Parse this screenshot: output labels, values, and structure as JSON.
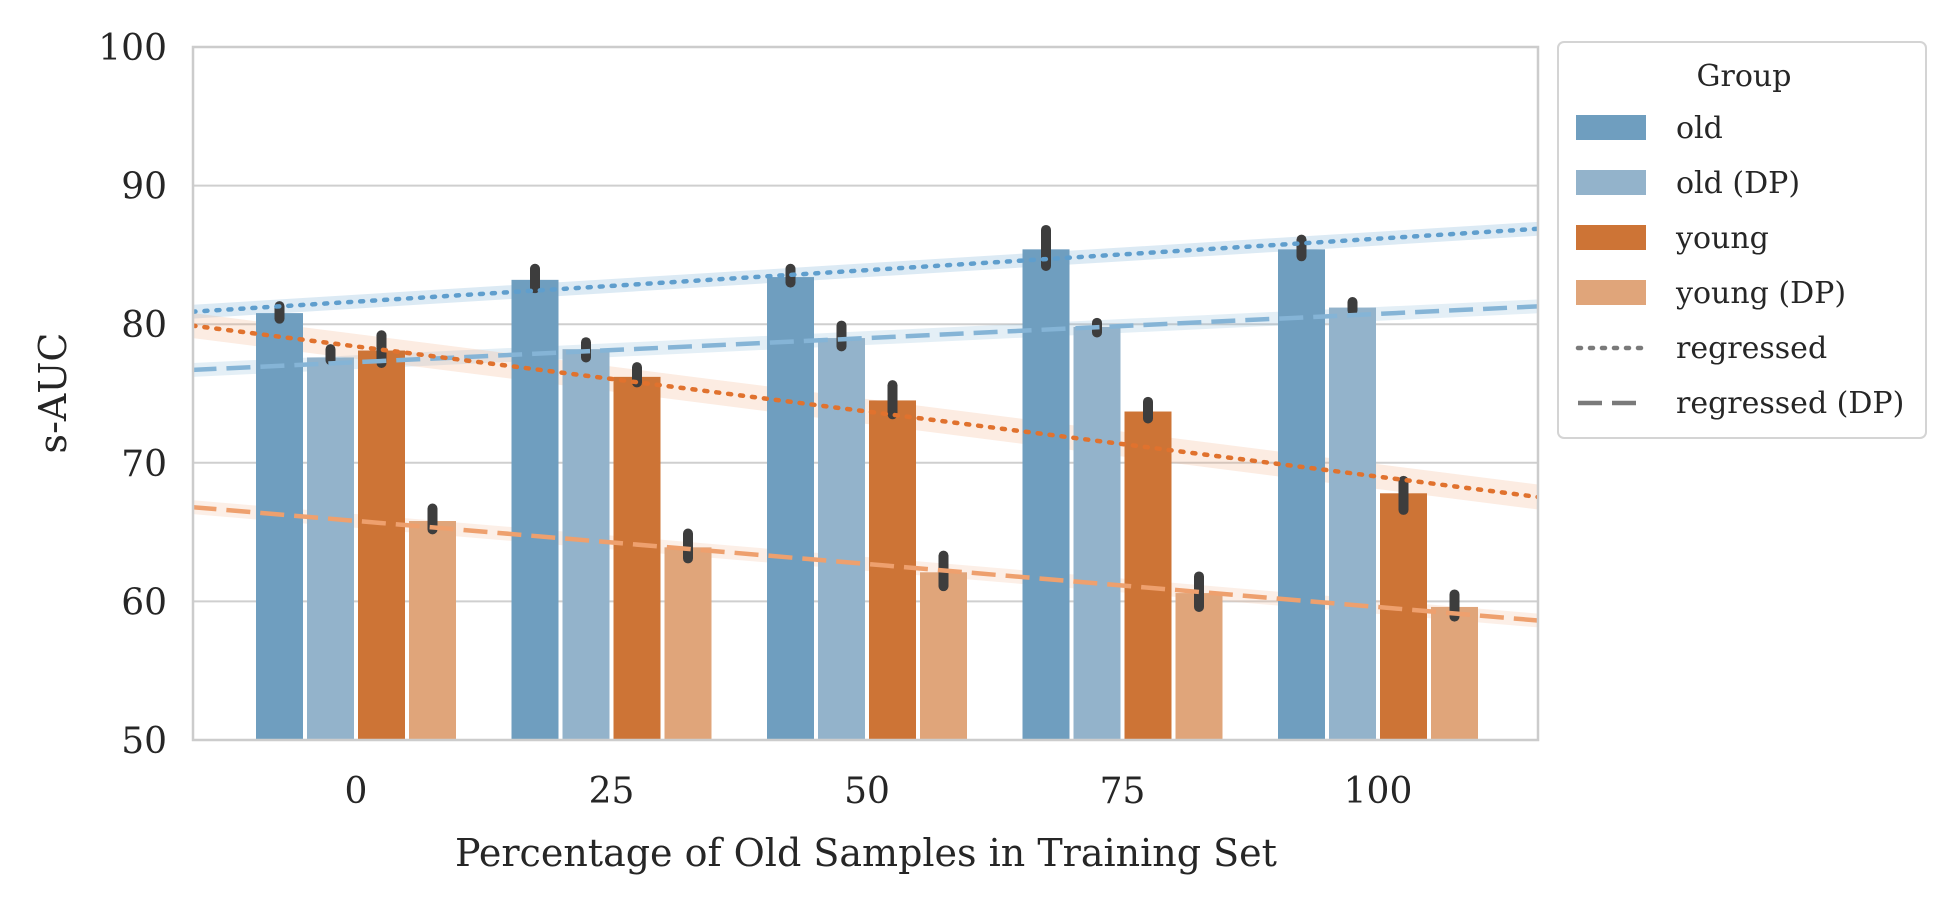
{
  "chart_data": {
    "type": "bar",
    "xlabel": "Percentage of Old Samples in Training Set",
    "ylabel": "s-AUC",
    "ylim": [
      50,
      100
    ],
    "yticks": [
      50,
      60,
      70,
      80,
      90,
      100
    ],
    "categories": [
      "0",
      "25",
      "50",
      "75",
      "100"
    ],
    "category_values": [
      0,
      25,
      50,
      75,
      100
    ],
    "grid": "horizontal",
    "legend": {
      "title": "Group",
      "placement": "outside-top-right",
      "entries": [
        "old",
        "old (DP)",
        "young",
        "young (DP)",
        "regressed",
        "regressed (DP)"
      ]
    },
    "series": [
      {
        "name": "old",
        "color": "#6f9ebf",
        "values": [
          80.8,
          83.2,
          83.4,
          85.4,
          85.4
        ],
        "err": [
          [
            80.4,
            81.3
          ],
          [
            82.6,
            84.0
          ],
          [
            83.0,
            84.0
          ],
          [
            84.2,
            86.8
          ],
          [
            84.9,
            86.1
          ]
        ]
      },
      {
        "name": "old (DP)",
        "color": "#93b3cb",
        "values": [
          77.6,
          78.2,
          79.0,
          79.8,
          81.2
        ],
        "err": [
          [
            77.4,
            78.2
          ],
          [
            77.6,
            78.7
          ],
          [
            78.4,
            79.9
          ],
          [
            79.4,
            80.1
          ],
          [
            81.0,
            81.6
          ]
        ]
      },
      {
        "name": "young",
        "color": "#cd7436",
        "values": [
          78.1,
          76.2,
          74.5,
          73.7,
          67.8
        ],
        "err": [
          [
            77.2,
            79.2
          ],
          [
            75.8,
            76.9
          ],
          [
            73.5,
            75.6
          ],
          [
            73.2,
            74.4
          ],
          [
            66.6,
            68.7
          ]
        ]
      },
      {
        "name": "young (DP)",
        "color": "#e0a57a",
        "values": [
          65.8,
          63.9,
          62.1,
          60.6,
          59.6
        ],
        "err": [
          [
            65.2,
            66.7
          ],
          [
            63.1,
            64.9
          ],
          [
            61.1,
            63.3
          ],
          [
            59.6,
            61.8
          ],
          [
            58.9,
            60.5
          ]
        ]
      }
    ],
    "regression_lines": [
      {
        "style": "dotted",
        "color": "#5f9ecd",
        "x": [
          -16,
          116
        ],
        "y": [
          80.9,
          86.9
        ],
        "band": 0.5,
        "band_color": "#5f9ecd"
      },
      {
        "style": "dashed",
        "color": "#85b4d6",
        "x": [
          -16,
          116
        ],
        "y": [
          76.7,
          81.3
        ],
        "band": 0.5,
        "band_color": "#85b4d6"
      },
      {
        "style": "dotted",
        "color": "#e0722e",
        "x": [
          -16,
          116
        ],
        "y": [
          79.9,
          67.5
        ],
        "band": 0.9,
        "band_color": "#f1a97a"
      },
      {
        "style": "dashed",
        "color": "#eea06e",
        "x": [
          -16,
          116
        ],
        "y": [
          66.8,
          58.6
        ],
        "band": 0.5,
        "band_color": "#f1b892"
      }
    ],
    "legend_colors": {
      "regressed": "#7a7a7a",
      "regressed_dp": "#7a7a7a"
    }
  }
}
